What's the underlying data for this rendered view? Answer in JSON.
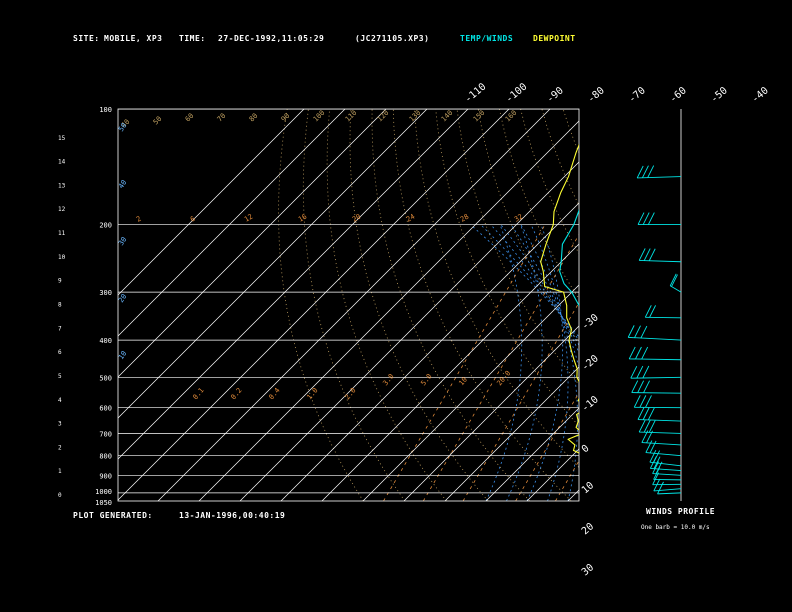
{
  "header": {
    "site_label": "SITE:",
    "site_value": "MOBILE, XP3",
    "time_label": "TIME:",
    "time_value": "27-DEC-1992,11:05:29",
    "file_value": "(JC271105.XP3)",
    "legend_temp": "TEMP/WINDS",
    "legend_dew": "DEWPOINT"
  },
  "footer": {
    "generated_label": "PLOT GENERATED:",
    "generated_value": "13-JAN-1996,00:40:19",
    "winds_title": "WINDS PROFILE",
    "winds_note": "One barb = 10.0 m/s"
  },
  "colors": {
    "temp": "#00e5e5",
    "dewpoint": "#ffff33",
    "grid": "#ffffff",
    "mixing": "#e08a3a",
    "moist": "#3a8ee8",
    "dry": "#c0a060"
  },
  "chart_data": {
    "type": "line",
    "title": "",
    "y_scale": "log-pressure",
    "ylim_hPa": [
      1050,
      100
    ],
    "pressure_ticks": [
      "100",
      "200",
      "300",
      "400",
      "500",
      "600",
      "700",
      "800",
      "900",
      "1000",
      "1050"
    ],
    "altitude_ticks": [
      "0",
      "1",
      "2",
      "3",
      "4",
      "5",
      "6",
      "7",
      "8",
      "9",
      "10",
      "11",
      "12",
      "13",
      "14",
      "15"
    ],
    "skew_isotherm_labels_top": [
      "-110",
      "-100",
      "-90",
      "-80",
      "-70",
      "-60",
      "-50",
      "-40"
    ],
    "skew_isotherm_labels_right": [
      "-30",
      "-20",
      "-10",
      "0",
      "10",
      "20",
      "30"
    ],
    "mixing_ratio_labels": [
      "2",
      "6",
      "12",
      "16",
      "20",
      "24",
      "28",
      "32"
    ],
    "mixing_ratio_low_labels": [
      "0.1",
      "0.2",
      "0.4",
      "1.0",
      "2.0",
      "3.0",
      "5.0",
      "10",
      "20.0"
    ],
    "moist_adiabat_labels": [
      "50",
      "40",
      "30",
      "20",
      "10"
    ],
    "dry_adiabat_labels": [
      "40",
      "50",
      "60",
      "70",
      "80",
      "90",
      "100",
      "110",
      "120",
      "130",
      "140",
      "150",
      "160"
    ],
    "series": [
      {
        "name": "TEMP/WINDS",
        "color": "#00e5e5",
        "points": [
          {
            "p": 1020,
            "t": 24
          },
          {
            "p": 1000,
            "t": 21
          },
          {
            "p": 975,
            "t": 19
          },
          {
            "p": 950,
            "t": 18
          },
          {
            "p": 925,
            "t": 16
          },
          {
            "p": 900,
            "t": 15
          },
          {
            "p": 875,
            "t": 13
          },
          {
            "p": 850,
            "t": 12
          },
          {
            "p": 825,
            "t": 10
          },
          {
            "p": 800,
            "t": 9
          },
          {
            "p": 775,
            "t": 7
          },
          {
            "p": 750,
            "t": 6
          },
          {
            "p": 725,
            "t": 4
          },
          {
            "p": 700,
            "t": 3
          },
          {
            "p": 675,
            "t": 1
          },
          {
            "p": 650,
            "t": 0
          },
          {
            "p": 625,
            "t": -1
          },
          {
            "p": 600,
            "t": -3
          },
          {
            "p": 575,
            "t": -5
          },
          {
            "p": 550,
            "t": -7
          },
          {
            "p": 525,
            "t": -9
          },
          {
            "p": 500,
            "t": -12
          },
          {
            "p": 475,
            "t": -14
          },
          {
            "p": 450,
            "t": -17
          },
          {
            "p": 425,
            "t": -19
          },
          {
            "p": 400,
            "t": -22
          },
          {
            "p": 375,
            "t": -26
          },
          {
            "p": 350,
            "t": -30
          },
          {
            "p": 325,
            "t": -35
          },
          {
            "p": 300,
            "t": -40
          },
          {
            "p": 285,
            "t": -44
          },
          {
            "p": 265,
            "t": -48
          },
          {
            "p": 250,
            "t": -50
          },
          {
            "p": 225,
            "t": -54
          },
          {
            "p": 200,
            "t": -56
          },
          {
            "p": 185,
            "t": -58
          },
          {
            "p": 165,
            "t": -61
          },
          {
            "p": 150,
            "t": -62
          },
          {
            "p": 130,
            "t": -66
          },
          {
            "p": 115,
            "t": -70
          },
          {
            "p": 100,
            "t": -75
          }
        ]
      },
      {
        "name": "DEWPOINT",
        "color": "#ffff33",
        "points": [
          {
            "p": 1020,
            "t": 21
          },
          {
            "p": 1000,
            "t": 20
          },
          {
            "p": 975,
            "t": 18
          },
          {
            "p": 950,
            "t": 17
          },
          {
            "p": 925,
            "t": 15
          },
          {
            "p": 900,
            "t": 14
          },
          {
            "p": 875,
            "t": 10
          },
          {
            "p": 850,
            "t": 7
          },
          {
            "p": 825,
            "t": 5
          },
          {
            "p": 800,
            "t": 3
          },
          {
            "p": 775,
            "t": -1
          },
          {
            "p": 750,
            "t": -2
          },
          {
            "p": 725,
            "t": -5
          },
          {
            "p": 700,
            "t": -3
          },
          {
            "p": 675,
            "t": -6
          },
          {
            "p": 650,
            "t": -7
          },
          {
            "p": 625,
            "t": -9
          },
          {
            "p": 600,
            "t": -8
          },
          {
            "p": 575,
            "t": -12
          },
          {
            "p": 550,
            "t": -13
          },
          {
            "p": 525,
            "t": -15
          },
          {
            "p": 500,
            "t": -18
          },
          {
            "p": 475,
            "t": -20
          },
          {
            "p": 450,
            "t": -23
          },
          {
            "p": 425,
            "t": -26
          },
          {
            "p": 400,
            "t": -29
          },
          {
            "p": 375,
            "t": -31
          },
          {
            "p": 350,
            "t": -35
          },
          {
            "p": 325,
            "t": -38
          },
          {
            "p": 300,
            "t": -42
          },
          {
            "p": 290,
            "t": -48
          },
          {
            "p": 265,
            "t": -52
          },
          {
            "p": 250,
            "t": -55
          },
          {
            "p": 225,
            "t": -58
          },
          {
            "p": 200,
            "t": -61
          },
          {
            "p": 185,
            "t": -64
          },
          {
            "p": 165,
            "t": -67
          },
          {
            "p": 150,
            "t": -69
          },
          {
            "p": 130,
            "t": -73
          },
          {
            "p": 115,
            "t": -76
          },
          {
            "p": 100,
            "t": -80
          }
        ]
      }
    ],
    "wind_profile": [
      {
        "p": 1000,
        "dir": 250,
        "spd": 10
      },
      {
        "p": 975,
        "dir": 260,
        "spd": 12
      },
      {
        "p": 950,
        "dir": 250,
        "spd": 14
      },
      {
        "p": 925,
        "dir": 245,
        "spd": 14
      },
      {
        "p": 900,
        "dir": 240,
        "spd": 16
      },
      {
        "p": 875,
        "dir": 240,
        "spd": 18
      },
      {
        "p": 850,
        "dir": 235,
        "spd": 20
      },
      {
        "p": 800,
        "dir": 240,
        "spd": 22
      },
      {
        "p": 750,
        "dir": 245,
        "spd": 24
      },
      {
        "p": 700,
        "dir": 250,
        "spd": 25
      },
      {
        "p": 650,
        "dir": 250,
        "spd": 26
      },
      {
        "p": 600,
        "dir": 255,
        "spd": 28
      },
      {
        "p": 550,
        "dir": 255,
        "spd": 30
      },
      {
        "p": 500,
        "dir": 260,
        "spd": 30
      },
      {
        "p": 450,
        "dir": 255,
        "spd": 32
      },
      {
        "p": 400,
        "dir": 250,
        "spd": 34
      },
      {
        "p": 350,
        "dir": 250,
        "spd": 20
      },
      {
        "p": 300,
        "dir": 200,
        "spd": 15
      },
      {
        "p": 250,
        "dir": 250,
        "spd": 25
      },
      {
        "p": 200,
        "dir": 255,
        "spd": 25
      },
      {
        "p": 150,
        "dir": 260,
        "spd": 25
      }
    ]
  }
}
